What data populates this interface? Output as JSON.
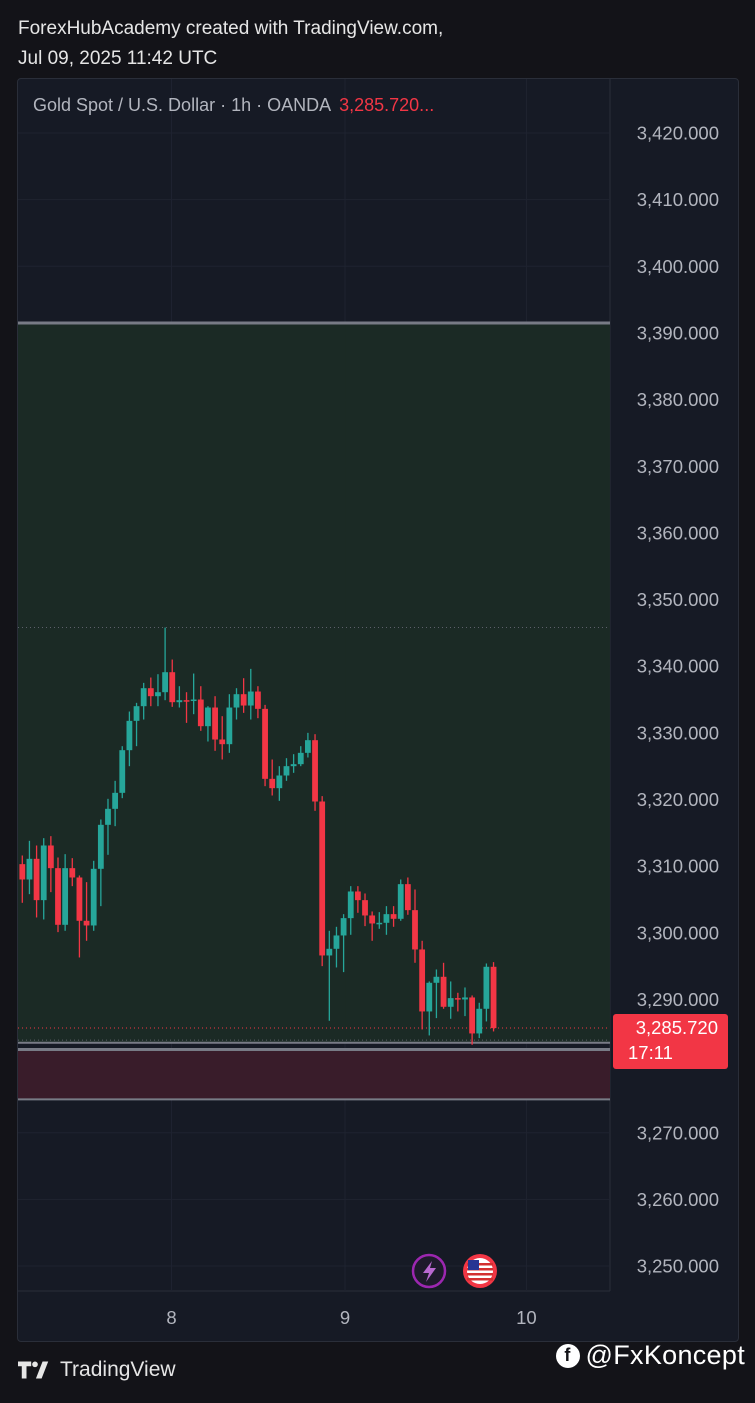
{
  "header": {
    "line1": "ForexHubAcademy created with TradingView.com,",
    "line2": "Jul 09, 2025 11:42 UTC"
  },
  "legend": {
    "symbol": "Gold Spot / U.S. Dollar · 1h · OANDA",
    "price": "3,285.720..."
  },
  "footer": {
    "brand": "TradingView"
  },
  "watermark": {
    "handle": "@FxKoncept",
    "icon": "facebook-icon"
  },
  "colors": {
    "up": "#26a69a",
    "down": "#f23645",
    "background": "#161a25",
    "demand_zone": "#1b2b25",
    "supply_zone": "#3b1c2a",
    "zone_line": "#787b86"
  },
  "chart_data": {
    "type": "candlestick",
    "title": "Gold Spot / U.S. Dollar · 1h · OANDA",
    "y_ticks": [
      3420,
      3410,
      3400,
      3390,
      3380,
      3370,
      3360,
      3350,
      3340,
      3330,
      3320,
      3310,
      3300,
      3290,
      3270,
      3260,
      3250
    ],
    "y_tick_labels": [
      "3,420.000",
      "3,410.000",
      "3,400.000",
      "3,390.000",
      "3,380.000",
      "3,370.000",
      "3,360.000",
      "3,350.000",
      "3,340.000",
      "3,330.000",
      "3,320.000",
      "3,310.000",
      "3,300.000",
      "3,290.000",
      "3,270.000",
      "3,260.000",
      "3,250.000"
    ],
    "x_ticks": [
      {
        "label": "8",
        "index": 20.9
      },
      {
        "label": "9",
        "index": 45.2
      },
      {
        "label": "10",
        "index": 70.6
      }
    ],
    "ylim": [
      3244,
      3426
    ],
    "current_price": {
      "label": "3,285.720",
      "countdown": "17:11",
      "value": 3285.72
    },
    "zones": [
      {
        "kind": "demand",
        "top": 3391.5,
        "bottom": 3283.5
      },
      {
        "kind": "supply",
        "top": 3282.5,
        "bottom": 3275.0
      }
    ],
    "dotted_levels": [
      3345.8,
      3283.9
    ],
    "candles": [
      {
        "o": 3310.3,
        "h": 3311.6,
        "l": 3304.5,
        "c": 3308.0
      },
      {
        "o": 3308.0,
        "h": 3313.8,
        "l": 3305.8,
        "c": 3311.1
      },
      {
        "o": 3311.1,
        "h": 3313.1,
        "l": 3302.3,
        "c": 3304.9
      },
      {
        "o": 3304.9,
        "h": 3314.2,
        "l": 3302.0,
        "c": 3313.1
      },
      {
        "o": 3313.1,
        "h": 3314.5,
        "l": 3306.1,
        "c": 3309.7
      },
      {
        "o": 3309.7,
        "h": 3311.3,
        "l": 3300.1,
        "c": 3301.2
      },
      {
        "o": 3301.2,
        "h": 3311.8,
        "l": 3300.3,
        "c": 3309.7
      },
      {
        "o": 3309.7,
        "h": 3311.2,
        "l": 3307.0,
        "c": 3308.3
      },
      {
        "o": 3308.3,
        "h": 3308.6,
        "l": 3296.3,
        "c": 3301.8
      },
      {
        "o": 3301.8,
        "h": 3307.6,
        "l": 3298.8,
        "c": 3301.1
      },
      {
        "o": 3301.1,
        "h": 3310.8,
        "l": 3300.3,
        "c": 3309.6
      },
      {
        "o": 3309.6,
        "h": 3317.0,
        "l": 3304.0,
        "c": 3316.2
      },
      {
        "o": 3316.2,
        "h": 3320.1,
        "l": 3311.7,
        "c": 3318.6
      },
      {
        "o": 3318.6,
        "h": 3322.8,
        "l": 3316.0,
        "c": 3321.0
      },
      {
        "o": 3321.0,
        "h": 3328.0,
        "l": 3320.2,
        "c": 3327.4
      },
      {
        "o": 3327.4,
        "h": 3333.2,
        "l": 3325.0,
        "c": 3331.8
      },
      {
        "o": 3331.8,
        "h": 3334.5,
        "l": 3328.0,
        "c": 3334.0
      },
      {
        "o": 3334.0,
        "h": 3337.5,
        "l": 3332.0,
        "c": 3336.7
      },
      {
        "o": 3336.7,
        "h": 3338.3,
        "l": 3334.0,
        "c": 3335.5
      },
      {
        "o": 3335.5,
        "h": 3338.8,
        "l": 3334.0,
        "c": 3336.1
      },
      {
        "o": 3336.1,
        "h": 3345.8,
        "l": 3334.9,
        "c": 3339.1
      },
      {
        "o": 3339.1,
        "h": 3341.0,
        "l": 3333.9,
        "c": 3334.6
      },
      {
        "o": 3334.6,
        "h": 3337.0,
        "l": 3333.8,
        "c": 3334.9
      },
      {
        "o": 3334.9,
        "h": 3336.1,
        "l": 3331.5,
        "c": 3334.8
      },
      {
        "o": 3334.8,
        "h": 3338.9,
        "l": 3332.8,
        "c": 3335.0
      },
      {
        "o": 3335.0,
        "h": 3337.0,
        "l": 3330.3,
        "c": 3331.0
      },
      {
        "o": 3331.0,
        "h": 3334.0,
        "l": 3328.7,
        "c": 3333.8
      },
      {
        "o": 3333.8,
        "h": 3335.5,
        "l": 3327.3,
        "c": 3329.0
      },
      {
        "o": 3329.0,
        "h": 3332.5,
        "l": 3326.0,
        "c": 3328.3
      },
      {
        "o": 3328.3,
        "h": 3335.8,
        "l": 3327.0,
        "c": 3333.8
      },
      {
        "o": 3333.8,
        "h": 3336.7,
        "l": 3332.0,
        "c": 3335.8
      },
      {
        "o": 3335.8,
        "h": 3338.2,
        "l": 3333.0,
        "c": 3334.1
      },
      {
        "o": 3334.1,
        "h": 3339.6,
        "l": 3332.0,
        "c": 3336.2
      },
      {
        "o": 3336.2,
        "h": 3337.0,
        "l": 3332.2,
        "c": 3333.6
      },
      {
        "o": 3333.6,
        "h": 3334.2,
        "l": 3322.0,
        "c": 3323.1
      },
      {
        "o": 3323.1,
        "h": 3326.0,
        "l": 3320.6,
        "c": 3321.7
      },
      {
        "o": 3321.7,
        "h": 3325.0,
        "l": 3319.8,
        "c": 3323.6
      },
      {
        "o": 3323.6,
        "h": 3326.2,
        "l": 3322.8,
        "c": 3325.0
      },
      {
        "o": 3325.0,
        "h": 3326.8,
        "l": 3324.0,
        "c": 3325.3
      },
      {
        "o": 3325.3,
        "h": 3328.0,
        "l": 3325.0,
        "c": 3327.0
      },
      {
        "o": 3327.0,
        "h": 3330.0,
        "l": 3326.3,
        "c": 3328.9
      },
      {
        "o": 3328.9,
        "h": 3329.8,
        "l": 3318.3,
        "c": 3319.7
      },
      {
        "o": 3319.7,
        "h": 3320.5,
        "l": 3295.0,
        "c": 3296.6
      },
      {
        "o": 3296.6,
        "h": 3300.3,
        "l": 3286.8,
        "c": 3297.6
      },
      {
        "o": 3297.6,
        "h": 3300.9,
        "l": 3294.8,
        "c": 3299.6
      },
      {
        "o": 3299.6,
        "h": 3302.8,
        "l": 3294.1,
        "c": 3302.2
      },
      {
        "o": 3302.2,
        "h": 3307.0,
        "l": 3299.7,
        "c": 3306.2
      },
      {
        "o": 3306.2,
        "h": 3307.0,
        "l": 3303.0,
        "c": 3304.9
      },
      {
        "o": 3304.9,
        "h": 3305.9,
        "l": 3301.0,
        "c": 3302.6
      },
      {
        "o": 3302.6,
        "h": 3303.2,
        "l": 3298.8,
        "c": 3301.4
      },
      {
        "o": 3301.4,
        "h": 3303.1,
        "l": 3300.6,
        "c": 3301.5
      },
      {
        "o": 3301.5,
        "h": 3304.0,
        "l": 3299.7,
        "c": 3302.8
      },
      {
        "o": 3302.8,
        "h": 3304.0,
        "l": 3300.9,
        "c": 3302.1
      },
      {
        "o": 3302.1,
        "h": 3308.0,
        "l": 3301.8,
        "c": 3307.3
      },
      {
        "o": 3307.3,
        "h": 3308.3,
        "l": 3302.7,
        "c": 3303.4
      },
      {
        "o": 3303.4,
        "h": 3306.5,
        "l": 3295.5,
        "c": 3297.5
      },
      {
        "o": 3297.5,
        "h": 3298.8,
        "l": 3285.5,
        "c": 3288.2
      },
      {
        "o": 3288.2,
        "h": 3292.7,
        "l": 3284.6,
        "c": 3292.5
      },
      {
        "o": 3292.5,
        "h": 3294.5,
        "l": 3287.2,
        "c": 3293.4
      },
      {
        "o": 3293.4,
        "h": 3295.5,
        "l": 3288.6,
        "c": 3288.9
      },
      {
        "o": 3288.9,
        "h": 3292.7,
        "l": 3287.1,
        "c": 3290.2
      },
      {
        "o": 3290.2,
        "h": 3291.0,
        "l": 3288.2,
        "c": 3290.0
      },
      {
        "o": 3290.0,
        "h": 3291.8,
        "l": 3287.5,
        "c": 3290.3
      },
      {
        "o": 3290.3,
        "h": 3290.6,
        "l": 3283.2,
        "c": 3284.9
      },
      {
        "o": 3284.9,
        "h": 3289.5,
        "l": 3284.2,
        "c": 3288.6
      },
      {
        "o": 3288.6,
        "h": 3295.4,
        "l": 3286.7,
        "c": 3294.9
      },
      {
        "o": 3294.9,
        "h": 3295.6,
        "l": 3285.2,
        "c": 3285.7
      }
    ]
  }
}
